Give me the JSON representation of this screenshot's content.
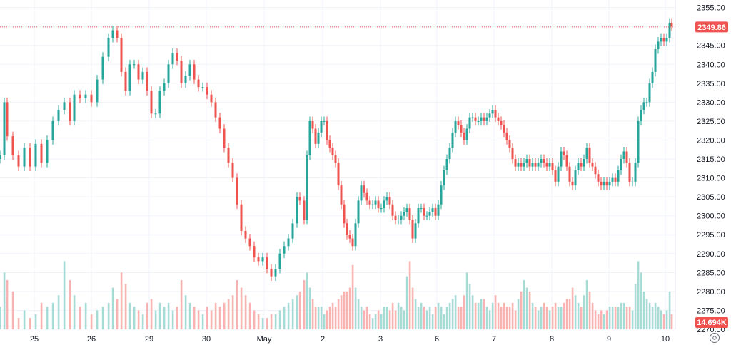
{
  "chart_data": {
    "type": "candlestick",
    "title": "",
    "xlabel": "",
    "ylabel": "",
    "ylim": [
      2270,
      2357
    ],
    "y_ticks": [
      2355,
      2350,
      2345,
      2340,
      2335,
      2330,
      2325,
      2320,
      2315,
      2310,
      2305,
      2300,
      2295,
      2290,
      2285,
      2280,
      2275,
      2270
    ],
    "y_tick_labels": [
      "2355.00",
      "2350.00",
      "2345.00",
      "2340.00",
      "2335.00",
      "2330.00",
      "2325.00",
      "2320.00",
      "2315.00",
      "2310.00",
      "2305.00",
      "2300.00",
      "2295.00",
      "2290.00",
      "2285.00",
      "2280.00",
      "2275.00",
      "2270.00"
    ],
    "x_labels": [
      "25",
      "26",
      "29",
      "30",
      "May",
      "2",
      "3",
      "6",
      "7",
      "8",
      "9",
      "10"
    ],
    "grid": true,
    "colors": {
      "up": "#26a69a",
      "down": "#ef5350",
      "up_volume": "#a6dbd6",
      "down_volume": "#f9b4b2",
      "grid": "#f0f3fa",
      "badge": "#ef5350"
    },
    "last_price": 2349.86,
    "last_price_label": "2349.86",
    "volume_label": "14.694K",
    "price_series": [
      [
        0,
        2316
      ],
      [
        6,
        2330
      ],
      [
        10,
        2321
      ],
      [
        18,
        2316
      ],
      [
        26,
        2313
      ],
      [
        34,
        2318
      ],
      [
        42,
        2313
      ],
      [
        50,
        2319
      ],
      [
        58,
        2314
      ],
      [
        66,
        2320
      ],
      [
        74,
        2325
      ],
      [
        82,
        2328
      ],
      [
        90,
        2330
      ],
      [
        98,
        2325
      ],
      [
        104,
        2332
      ],
      [
        112,
        2331
      ],
      [
        120,
        2332
      ],
      [
        128,
        2330
      ],
      [
        136,
        2336
      ],
      [
        144,
        2342
      ],
      [
        152,
        2347
      ],
      [
        158,
        2349
      ],
      [
        164,
        2347
      ],
      [
        170,
        2338
      ],
      [
        176,
        2333
      ],
      [
        182,
        2340
      ],
      [
        188,
        2340
      ],
      [
        194,
        2336
      ],
      [
        200,
        2338
      ],
      [
        206,
        2333
      ],
      [
        212,
        2327
      ],
      [
        218,
        2327
      ],
      [
        224,
        2333
      ],
      [
        230,
        2335
      ],
      [
        236,
        2340
      ],
      [
        242,
        2343
      ],
      [
        248,
        2341
      ],
      [
        254,
        2335
      ],
      [
        260,
        2337
      ],
      [
        266,
        2340
      ],
      [
        272,
        2336
      ],
      [
        278,
        2334
      ],
      [
        284,
        2334
      ],
      [
        290,
        2332
      ],
      [
        296,
        2330
      ],
      [
        302,
        2326
      ],
      [
        308,
        2323
      ],
      [
        314,
        2318
      ],
      [
        320,
        2314
      ],
      [
        326,
        2310
      ],
      [
        332,
        2303
      ],
      [
        338,
        2296
      ],
      [
        344,
        2294
      ],
      [
        350,
        2292
      ],
      [
        356,
        2289
      ],
      [
        362,
        2288
      ],
      [
        368,
        2289
      ],
      [
        374,
        2286
      ],
      [
        380,
        2284
      ],
      [
        386,
        2286
      ],
      [
        392,
        2290
      ],
      [
        398,
        2292
      ],
      [
        404,
        2294
      ],
      [
        410,
        2298
      ],
      [
        416,
        2305
      ],
      [
        420,
        2304
      ],
      [
        426,
        2299
      ],
      [
        430,
        2316
      ],
      [
        434,
        2325
      ],
      [
        438,
        2323
      ],
      [
        442,
        2319
      ],
      [
        446,
        2322
      ],
      [
        450,
        2325
      ],
      [
        454,
        2325
      ],
      [
        458,
        2320
      ],
      [
        462,
        2318
      ],
      [
        466,
        2316
      ],
      [
        470,
        2314
      ],
      [
        474,
        2308
      ],
      [
        478,
        2303
      ],
      [
        482,
        2298
      ],
      [
        486,
        2295
      ],
      [
        490,
        2294
      ],
      [
        494,
        2292
      ],
      [
        498,
        2298
      ],
      [
        502,
        2304
      ],
      [
        506,
        2308
      ],
      [
        510,
        2306
      ],
      [
        514,
        2304
      ],
      [
        518,
        2303
      ],
      [
        522,
        2303
      ],
      [
        526,
        2304
      ],
      [
        530,
        2302
      ],
      [
        534,
        2302
      ],
      [
        538,
        2304
      ],
      [
        542,
        2305
      ],
      [
        546,
        2303
      ],
      [
        550,
        2300
      ],
      [
        554,
        2299
      ],
      [
        558,
        2299
      ],
      [
        562,
        2300
      ],
      [
        566,
        2301
      ],
      [
        570,
        2302
      ],
      [
        574,
        2299
      ],
      [
        578,
        2294
      ],
      [
        582,
        2298
      ],
      [
        586,
        2302
      ],
      [
        590,
        2302
      ],
      [
        594,
        2300
      ],
      [
        598,
        2300
      ],
      [
        602,
        2301
      ],
      [
        606,
        2302
      ],
      [
        610,
        2300
      ],
      [
        614,
        2303
      ],
      [
        618,
        2308
      ],
      [
        622,
        2312
      ],
      [
        626,
        2315
      ],
      [
        630,
        2318
      ],
      [
        634,
        2322
      ],
      [
        638,
        2325
      ],
      [
        642,
        2324
      ],
      [
        646,
        2322
      ],
      [
        650,
        2320
      ],
      [
        654,
        2323
      ],
      [
        658,
        2326
      ],
      [
        662,
        2326
      ],
      [
        666,
        2325
      ],
      [
        670,
        2325
      ],
      [
        674,
        2326
      ],
      [
        678,
        2325
      ],
      [
        682,
        2326
      ],
      [
        686,
        2327
      ],
      [
        690,
        2328
      ],
      [
        694,
        2326
      ],
      [
        698,
        2325
      ],
      [
        702,
        2324
      ],
      [
        706,
        2322
      ],
      [
        710,
        2320
      ],
      [
        714,
        2318
      ],
      [
        718,
        2315
      ],
      [
        722,
        2313
      ],
      [
        726,
        2314
      ],
      [
        730,
        2313
      ],
      [
        734,
        2314
      ],
      [
        738,
        2315
      ],
      [
        742,
        2313
      ],
      [
        746,
        2314
      ],
      [
        750,
        2313
      ],
      [
        754,
        2314
      ],
      [
        758,
        2315
      ],
      [
        762,
        2314
      ],
      [
        766,
        2313
      ],
      [
        770,
        2314
      ],
      [
        774,
        2312
      ],
      [
        778,
        2309
      ],
      [
        782,
        2313
      ],
      [
        786,
        2317
      ],
      [
        790,
        2316
      ],
      [
        794,
        2313
      ],
      [
        798,
        2309
      ],
      [
        802,
        2308
      ],
      [
        806,
        2312
      ],
      [
        810,
        2314
      ],
      [
        814,
        2313
      ],
      [
        818,
        2315
      ],
      [
        822,
        2318
      ],
      [
        826,
        2314
      ],
      [
        830,
        2313
      ],
      [
        834,
        2311
      ],
      [
        838,
        2309
      ],
      [
        842,
        2308
      ],
      [
        846,
        2309
      ],
      [
        850,
        2308
      ],
      [
        854,
        2309
      ],
      [
        858,
        2310
      ],
      [
        862,
        2309
      ],
      [
        866,
        2312
      ],
      [
        870,
        2315
      ],
      [
        874,
        2317
      ],
      [
        878,
        2314
      ],
      [
        882,
        2309
      ],
      [
        886,
        2309
      ],
      [
        890,
        2314
      ],
      [
        894,
        2325
      ],
      [
        898,
        2328
      ],
      [
        902,
        2330
      ],
      [
        906,
        2330
      ],
      [
        910,
        2335
      ],
      [
        914,
        2338
      ],
      [
        918,
        2344
      ],
      [
        922,
        2346
      ],
      [
        926,
        2347
      ],
      [
        930,
        2346
      ],
      [
        934,
        2347
      ],
      [
        938,
        2351
      ],
      [
        941,
        2350
      ]
    ],
    "volume_series": [
      [
        0,
        2276
      ],
      [
        6,
        2285
      ],
      [
        10,
        2283
      ],
      [
        18,
        2280
      ],
      [
        26,
        2273
      ],
      [
        34,
        2275
      ],
      [
        42,
        2273
      ],
      [
        50,
        2274
      ],
      [
        58,
        2277
      ],
      [
        66,
        2276
      ],
      [
        74,
        2277
      ],
      [
        82,
        2279
      ],
      [
        90,
        2288
      ],
      [
        98,
        2283
      ],
      [
        104,
        2279
      ],
      [
        112,
        2276
      ],
      [
        120,
        2277
      ],
      [
        128,
        2274
      ],
      [
        136,
        2275
      ],
      [
        144,
        2276
      ],
      [
        152,
        2277
      ],
      [
        158,
        2281
      ],
      [
        164,
        2278
      ],
      [
        170,
        2285
      ],
      [
        176,
        2282
      ],
      [
        182,
        2277
      ],
      [
        188,
        2276
      ],
      [
        194,
        2275
      ],
      [
        200,
        2274
      ],
      [
        206,
        2277
      ],
      [
        212,
        2278
      ],
      [
        218,
        2275
      ],
      [
        224,
        2277
      ],
      [
        230,
        2276
      ],
      [
        236,
        2277
      ],
      [
        242,
        2275
      ],
      [
        248,
        2276
      ],
      [
        254,
        2283
      ],
      [
        260,
        2279
      ],
      [
        266,
        2277
      ],
      [
        272,
        2276
      ],
      [
        278,
        2275
      ],
      [
        284,
        2274
      ],
      [
        290,
        2276
      ],
      [
        296,
        2275
      ],
      [
        302,
        2277
      ],
      [
        308,
        2276
      ],
      [
        314,
        2277
      ],
      [
        320,
        2278
      ],
      [
        326,
        2279
      ],
      [
        332,
        2283
      ],
      [
        338,
        2281
      ],
      [
        344,
        2279
      ],
      [
        350,
        2277
      ],
      [
        356,
        2275
      ],
      [
        362,
        2274
      ],
      [
        368,
        2273
      ],
      [
        374,
        2273
      ],
      [
        380,
        2274
      ],
      [
        386,
        2274
      ],
      [
        392,
        2275
      ],
      [
        398,
        2276
      ],
      [
        404,
        2277
      ],
      [
        410,
        2278
      ],
      [
        416,
        2279
      ],
      [
        420,
        2280
      ],
      [
        426,
        2283
      ],
      [
        430,
        2285
      ],
      [
        434,
        2281
      ],
      [
        438,
        2278
      ],
      [
        442,
        2276
      ],
      [
        446,
        2276
      ],
      [
        450,
        2276
      ],
      [
        454,
        2274
      ],
      [
        458,
        2275
      ],
      [
        462,
        2276
      ],
      [
        466,
        2277
      ],
      [
        470,
        2276
      ],
      [
        474,
        2278
      ],
      [
        478,
        2279
      ],
      [
        482,
        2280
      ],
      [
        486,
        2280
      ],
      [
        490,
        2281
      ],
      [
        494,
        2287
      ],
      [
        498,
        2281
      ],
      [
        502,
        2278
      ],
      [
        506,
        2276
      ],
      [
        510,
        2275
      ],
      [
        514,
        2276
      ],
      [
        518,
        2274
      ],
      [
        522,
        2273
      ],
      [
        526,
        2274
      ],
      [
        530,
        2275
      ],
      [
        534,
        2274
      ],
      [
        538,
        2276
      ],
      [
        542,
        2276
      ],
      [
        546,
        2275
      ],
      [
        550,
        2277
      ],
      [
        554,
        2275
      ],
      [
        558,
        2277
      ],
      [
        562,
        2276
      ],
      [
        566,
        2275
      ],
      [
        570,
        2284
      ],
      [
        574,
        2288
      ],
      [
        578,
        2281
      ],
      [
        582,
        2278
      ],
      [
        586,
        2276
      ],
      [
        590,
        2277
      ],
      [
        594,
        2276
      ],
      [
        598,
        2275
      ],
      [
        602,
        2276
      ],
      [
        606,
        2274
      ],
      [
        610,
        2276
      ],
      [
        614,
        2277
      ],
      [
        618,
        2276
      ],
      [
        622,
        2274
      ],
      [
        626,
        2276
      ],
      [
        630,
        2277
      ],
      [
        634,
        2278
      ],
      [
        638,
        2279
      ],
      [
        642,
        2276
      ],
      [
        646,
        2276
      ],
      [
        650,
        2279
      ],
      [
        654,
        2285
      ],
      [
        658,
        2282
      ],
      [
        662,
        2279
      ],
      [
        666,
        2277
      ],
      [
        670,
        2277
      ],
      [
        674,
        2278
      ],
      [
        678,
        2278
      ],
      [
        682,
        2276
      ],
      [
        686,
        2275
      ],
      [
        690,
        2277
      ],
      [
        694,
        2279
      ],
      [
        698,
        2277
      ],
      [
        702,
        2276
      ],
      [
        706,
        2277
      ],
      [
        710,
        2276
      ],
      [
        714,
        2276
      ],
      [
        718,
        2277
      ],
      [
        722,
        2275
      ],
      [
        726,
        2278
      ],
      [
        730,
        2280
      ],
      [
        734,
        2283
      ],
      [
        738,
        2281
      ],
      [
        742,
        2280
      ],
      [
        746,
        2277
      ],
      [
        750,
        2276
      ],
      [
        754,
        2275
      ],
      [
        758,
        2276
      ],
      [
        762,
        2277
      ],
      [
        766,
        2276
      ],
      [
        770,
        2275
      ],
      [
        774,
        2276
      ],
      [
        778,
        2277
      ],
      [
        782,
        2276
      ],
      [
        786,
        2276
      ],
      [
        790,
        2277
      ],
      [
        794,
        2278
      ],
      [
        798,
        2278
      ],
      [
        802,
        2281
      ],
      [
        806,
        2279
      ],
      [
        810,
        2277
      ],
      [
        814,
        2276
      ],
      [
        818,
        2279
      ],
      [
        822,
        2283
      ],
      [
        826,
        2280
      ],
      [
        830,
        2277
      ],
      [
        834,
        2275
      ],
      [
        838,
        2274
      ],
      [
        842,
        2275
      ],
      [
        846,
        2274
      ],
      [
        850,
        2275
      ],
      [
        854,
        2276
      ],
      [
        858,
        2276
      ],
      [
        862,
        2276
      ],
      [
        866,
        2276
      ],
      [
        870,
        2277
      ],
      [
        874,
        2277
      ],
      [
        878,
        2276
      ],
      [
        882,
        2276
      ],
      [
        886,
        2275
      ],
      [
        890,
        2282
      ],
      [
        894,
        2288
      ],
      [
        898,
        2285
      ],
      [
        902,
        2280
      ],
      [
        906,
        2278
      ],
      [
        910,
        2277
      ],
      [
        914,
        2276
      ],
      [
        918,
        2277
      ],
      [
        922,
        2276
      ],
      [
        926,
        2275
      ],
      [
        930,
        2274
      ],
      [
        934,
        2275
      ],
      [
        938,
        2280
      ],
      [
        941,
        2274
      ]
    ]
  }
}
